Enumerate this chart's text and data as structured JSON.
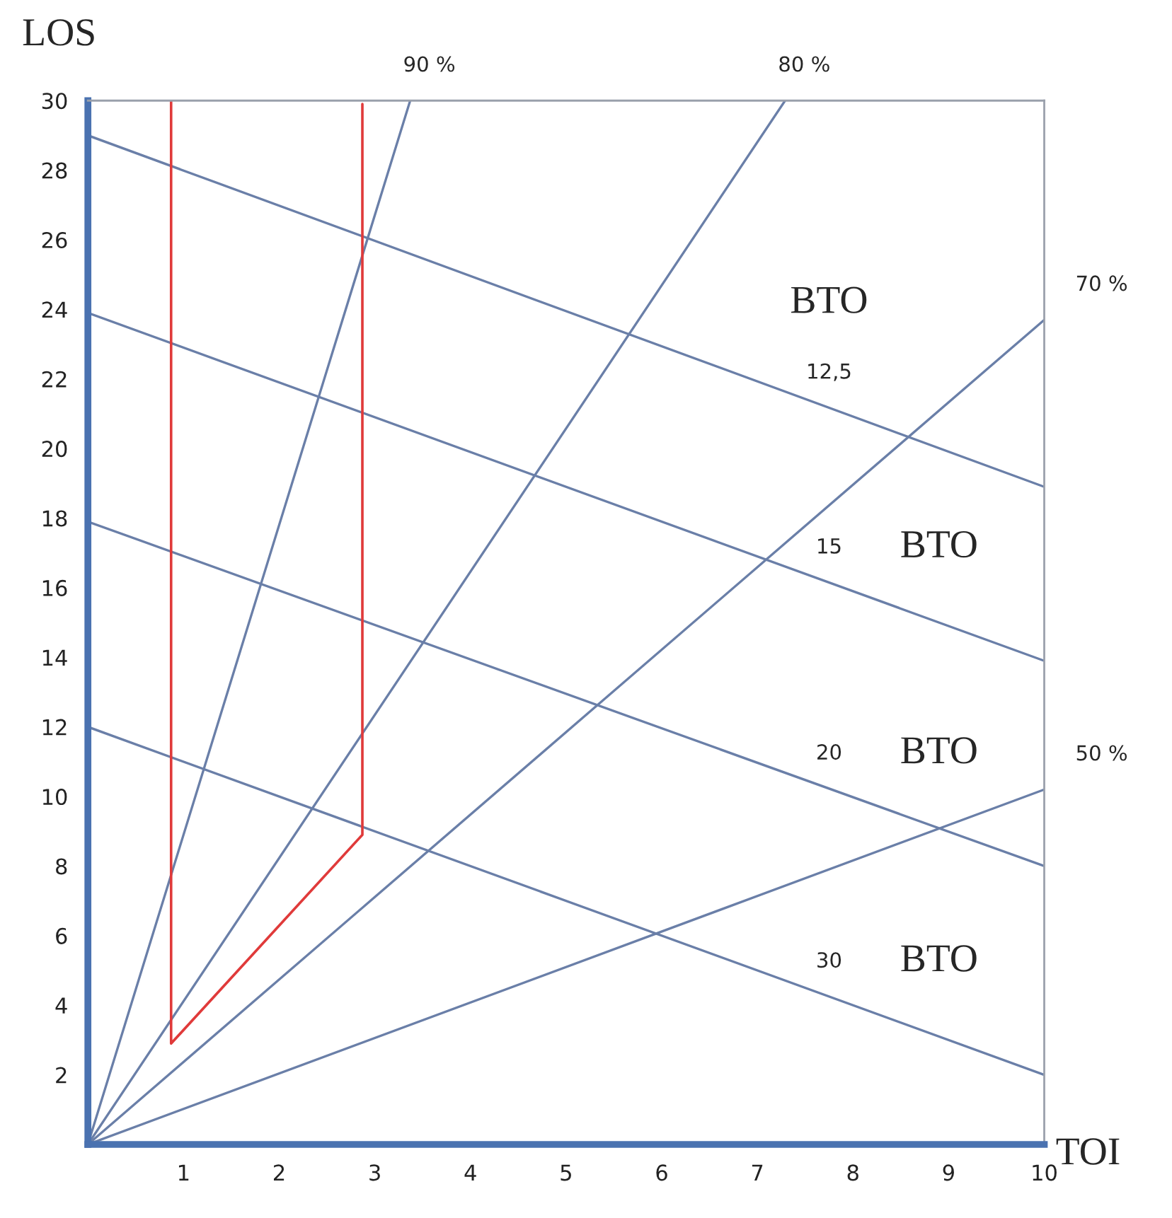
{
  "chart_data": {
    "type": "line",
    "xlabel": "TOI",
    "ylabel": "LOS",
    "xlim": [
      0,
      10
    ],
    "ylim": [
      0,
      30
    ],
    "xticks": [
      1,
      2,
      3,
      4,
      5,
      6,
      7,
      8,
      9,
      10
    ],
    "yticks": [
      2,
      4,
      6,
      8,
      10,
      12,
      14,
      16,
      18,
      20,
      22,
      24,
      26,
      28,
      30
    ],
    "grid": false,
    "legend": false,
    "marker": "none",
    "line_style": "solid",
    "series": [
      {
        "name": "90 %",
        "color": "#6a7fa8",
        "x": [
          0,
          3.37
        ],
        "values": [
          0,
          30
        ]
      },
      {
        "name": "80 %",
        "color": "#6a7fa8",
        "x": [
          0,
          7.29
        ],
        "values": [
          0,
          30
        ]
      },
      {
        "name": "70 %",
        "color": "#6a7fa8",
        "x": [
          0,
          10
        ],
        "values": [
          0,
          23.7
        ]
      },
      {
        "name": "50 %",
        "color": "#6a7fa8",
        "x": [
          0,
          10
        ],
        "values": [
          0,
          10.2
        ]
      },
      {
        "name": "12,5",
        "color": "#6a7fa8",
        "x": [
          0,
          10
        ],
        "values": [
          29,
          18.9
        ]
      },
      {
        "name": "15",
        "color": "#6a7fa8",
        "x": [
          0,
          10
        ],
        "values": [
          23.9,
          13.9
        ]
      },
      {
        "name": "20",
        "color": "#6a7fa8",
        "x": [
          0,
          10
        ],
        "values": [
          17.9,
          8
        ]
      },
      {
        "name": "30",
        "color": "#6a7fa8",
        "x": [
          0,
          10
        ],
        "values": [
          12,
          2
        ]
      },
      {
        "color": "#e03a3a",
        "x": [
          0.87,
          0.87,
          2.87,
          2.87
        ],
        "values": [
          30,
          2.9,
          8.9,
          29.9
        ]
      }
    ],
    "annotations": [
      "BTO",
      "BTO",
      "BTO",
      "BTO"
    ]
  }
}
